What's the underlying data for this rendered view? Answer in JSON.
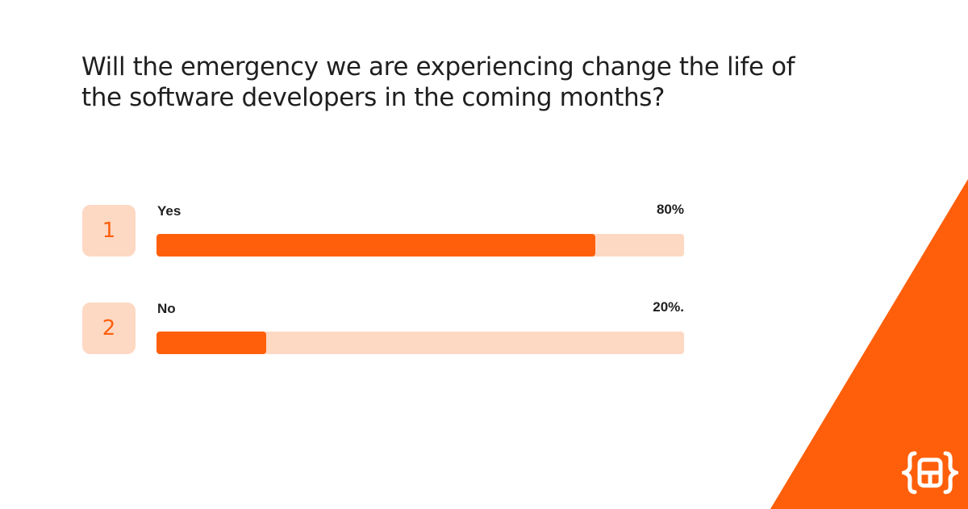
{
  "chart_data": {
    "type": "bar",
    "title": "Will the emergency we are experiencing change the life of the software developers in the coming months?",
    "categories": [
      "Yes",
      "No"
    ],
    "values": [
      80,
      20
    ],
    "value_labels": [
      "80%",
      "20%."
    ],
    "option_numbers": [
      "1",
      "2"
    ],
    "xlabel": "",
    "ylabel": "",
    "ylim": [
      0,
      100
    ],
    "grid": false
  },
  "colors": {
    "accent": "#ff5f0a",
    "track": "#fdd8c3",
    "text": "#1f1f1f"
  },
  "logo": {
    "icon": "brand-braces-logo-icon"
  }
}
